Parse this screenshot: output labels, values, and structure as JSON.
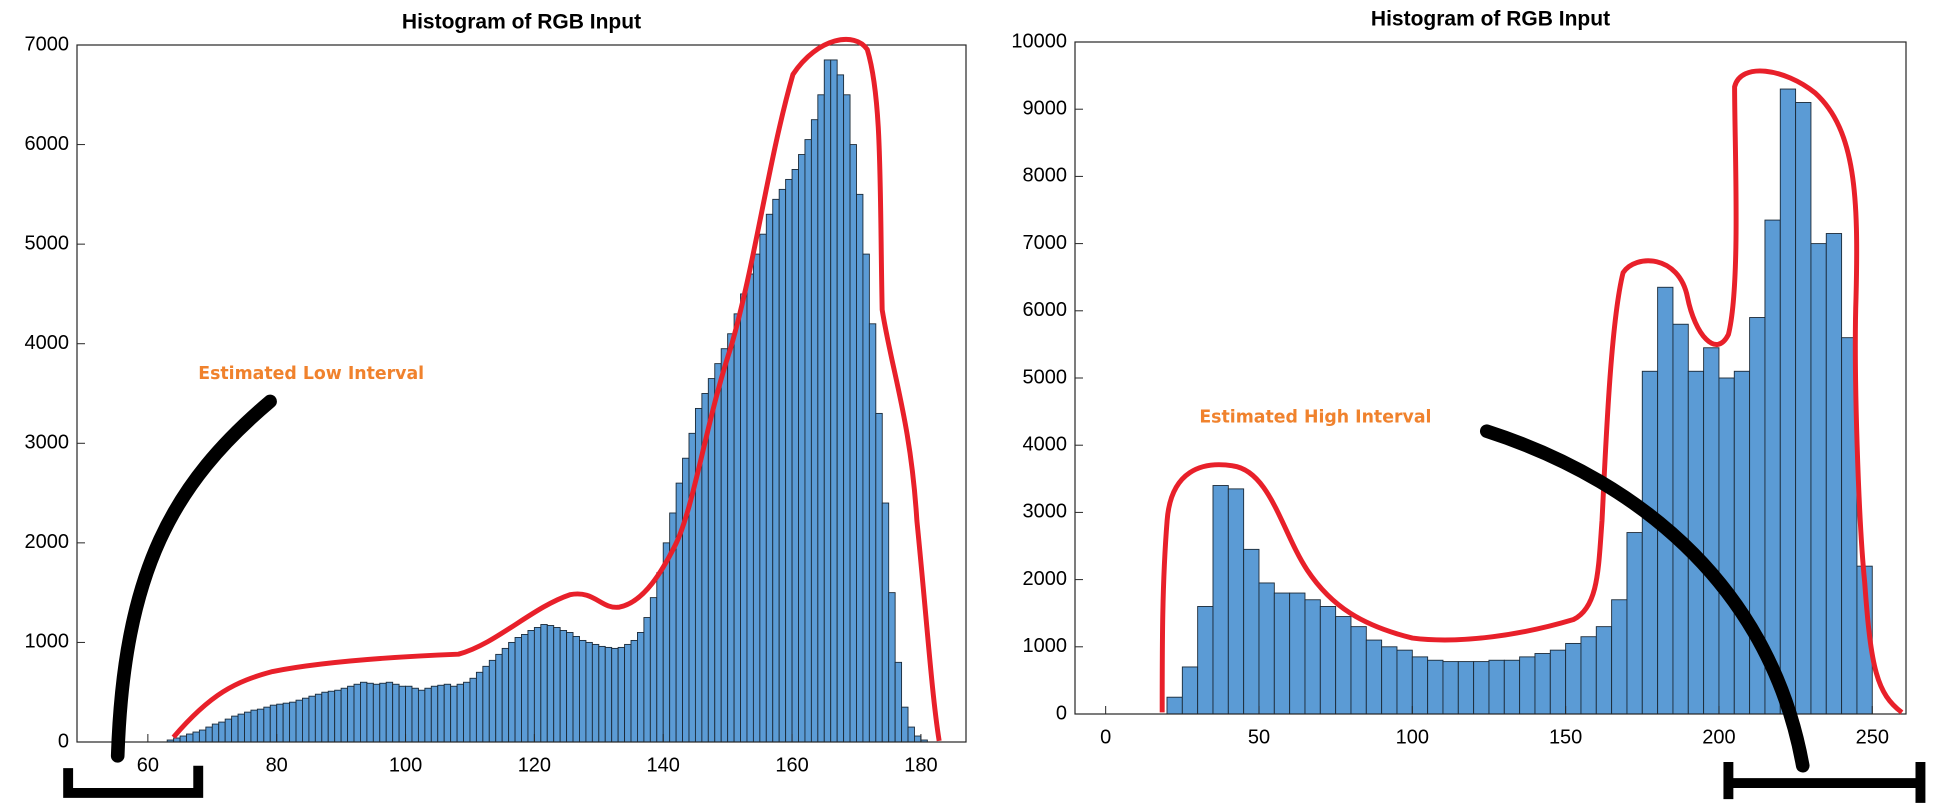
{
  "chart_data": [
    {
      "type": "histogram",
      "title": "Histogram of RGB Input",
      "annotation": "Estimated Low Interval",
      "color": "#5b9bd5",
      "bins": [
        63,
        64,
        65,
        66,
        67,
        68,
        69,
        70,
        71,
        72,
        73,
        74,
        75,
        76,
        77,
        78,
        79,
        80,
        81,
        82,
        83,
        84,
        85,
        86,
        87,
        88,
        89,
        90,
        91,
        92,
        93,
        94,
        95,
        96,
        97,
        98,
        99,
        100,
        101,
        102,
        103,
        104,
        105,
        106,
        107,
        108,
        109,
        110,
        111,
        112,
        113,
        114,
        115,
        116,
        117,
        118,
        119,
        120,
        121,
        122,
        123,
        124,
        125,
        126,
        127,
        128,
        129,
        130,
        131,
        132,
        133,
        134,
        135,
        136,
        137,
        138,
        139,
        140,
        141,
        142,
        143,
        144,
        145,
        146,
        147,
        148,
        149,
        150,
        151,
        152,
        153,
        154,
        155,
        156,
        157,
        158,
        159,
        160,
        161,
        162,
        163,
        164,
        165,
        166,
        167,
        168,
        169,
        170,
        171,
        172,
        173,
        174,
        175,
        176,
        177,
        178,
        179,
        180,
        181
      ],
      "values": [
        20,
        40,
        60,
        80,
        100,
        120,
        150,
        180,
        200,
        230,
        260,
        280,
        300,
        320,
        330,
        350,
        370,
        380,
        390,
        400,
        420,
        440,
        460,
        480,
        500,
        510,
        520,
        540,
        560,
        580,
        600,
        590,
        580,
        590,
        600,
        580,
        560,
        560,
        540,
        520,
        540,
        560,
        570,
        580,
        560,
        580,
        600,
        640,
        700,
        760,
        820,
        880,
        940,
        1000,
        1050,
        1080,
        1120,
        1150,
        1180,
        1170,
        1150,
        1120,
        1100,
        1060,
        1020,
        1000,
        980,
        960,
        950,
        940,
        950,
        980,
        1020,
        1100,
        1250,
        1450,
        1700,
        2000,
        2300,
        2600,
        2850,
        3100,
        3350,
        3500,
        3650,
        3800,
        3950,
        4100,
        4300,
        4500,
        4700,
        4900,
        5100,
        5300,
        5450,
        5550,
        5650,
        5750,
        5900,
        6050,
        6250,
        6500,
        6850,
        6850,
        6700,
        6500,
        6000,
        5500,
        4900,
        4200,
        3300,
        2400,
        1500,
        800,
        350,
        150,
        60,
        20
      ],
      "xlim": [
        49,
        187
      ],
      "ylim": [
        0,
        7000
      ],
      "xticks": [
        60,
        80,
        100,
        120,
        140,
        160,
        180
      ],
      "yticks": [
        0,
        1000,
        2000,
        3000,
        4000,
        5000,
        6000,
        7000
      ]
    },
    {
      "type": "histogram",
      "title": "Histogram of RGB Input",
      "annotation": "Estimated High Interval",
      "color": "#5b9bd5",
      "bins": [
        20,
        25,
        30,
        35,
        40,
        45,
        50,
        55,
        60,
        65,
        70,
        75,
        80,
        85,
        90,
        95,
        100,
        105,
        110,
        115,
        120,
        125,
        130,
        135,
        140,
        145,
        150,
        155,
        160,
        165,
        170,
        175,
        180,
        185,
        190,
        195,
        200,
        205,
        210,
        215,
        220,
        225,
        230,
        235,
        240,
        245,
        250
      ],
      "values": [
        250,
        700,
        1600,
        3400,
        3350,
        2450,
        1950,
        1800,
        1800,
        1700,
        1600,
        1450,
        1300,
        1100,
        1000,
        950,
        850,
        800,
        780,
        780,
        780,
        800,
        800,
        850,
        900,
        950,
        1050,
        1150,
        1300,
        1700,
        2700,
        5100,
        6350,
        5800,
        5100,
        5450,
        5000,
        5100,
        5900,
        7350,
        9300,
        9100,
        7000,
        7150,
        5600,
        2200
      ],
      "xlim": [
        -10,
        261
      ],
      "ylim": [
        0,
        10000
      ],
      "xticks": [
        0,
        50,
        100,
        150,
        200,
        250
      ],
      "yticks": [
        0,
        1000,
        2000,
        3000,
        4000,
        5000,
        6000,
        7000,
        8000,
        9000,
        10000
      ]
    }
  ]
}
